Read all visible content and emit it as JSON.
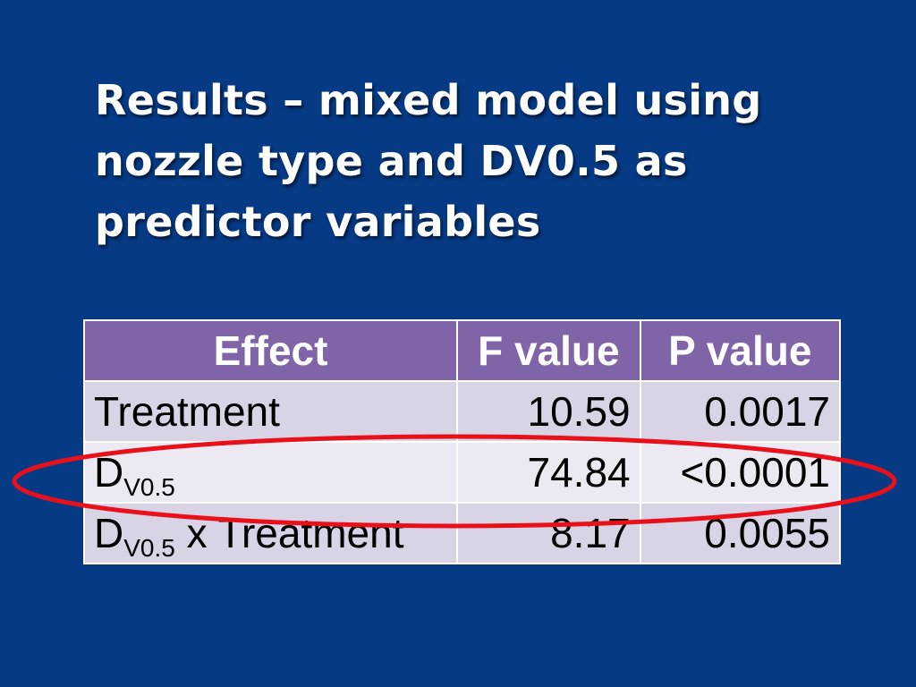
{
  "slide": {
    "title_lines": [
      "Results – mixed model using",
      "nozzle type and DV0.5 as",
      "predictor variables"
    ]
  },
  "table": {
    "headers": {
      "effect": "Effect",
      "f_value": "F value",
      "p_value": "P value"
    },
    "rows": [
      {
        "effect_main": "Treatment",
        "effect_sub": "",
        "effect_suffix": "",
        "f_value": "10.59",
        "p_value": "0.0017"
      },
      {
        "effect_main": "D",
        "effect_sub": "V0.5",
        "effect_suffix": "",
        "f_value": "74.84",
        "p_value": "<0.0001"
      },
      {
        "effect_main": "D",
        "effect_sub": "V0.5",
        "effect_suffix": " x Treatment",
        "f_value": "8.17",
        "p_value": "0.0055"
      }
    ],
    "header_color": "#8064a8",
    "row_colors": [
      "#d8d3e5",
      "#ece9f2"
    ]
  },
  "highlight": {
    "row_index": 1,
    "color": "#e8101a"
  },
  "colors": {
    "background": "#063a85",
    "title": "#ffffff"
  }
}
